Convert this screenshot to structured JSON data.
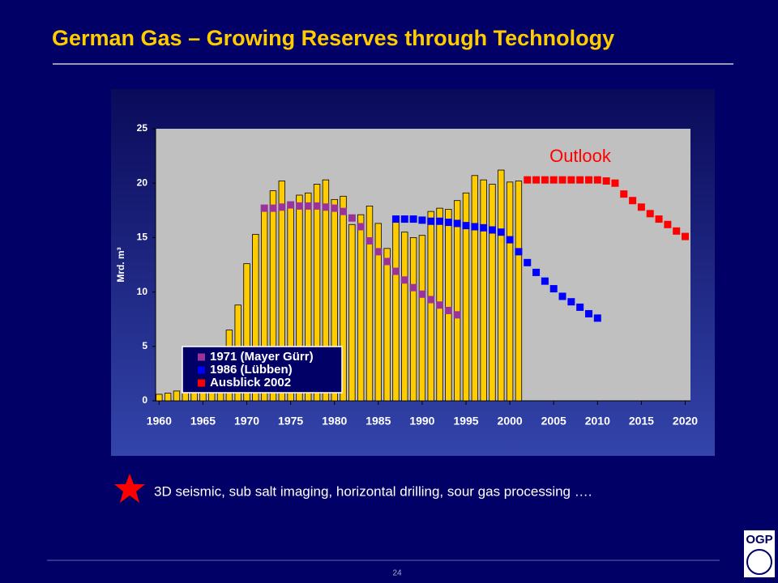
{
  "title": "German Gas – Growing Reserves through Technology",
  "chart_data": {
    "type": "bar",
    "ylabel": "Mrd. m³",
    "annotation": "Outlook",
    "xlim": [
      1959.6,
      2020.6
    ],
    "ylim": [
      0,
      25
    ],
    "xticks": [
      1960,
      1965,
      1970,
      1975,
      1980,
      1985,
      1990,
      1995,
      2000,
      2005,
      2010,
      2015,
      2020
    ],
    "yticks": [
      0,
      5,
      10,
      15,
      20,
      25
    ],
    "bars": {
      "color": "#ffcc00",
      "x": [
        1960,
        1961,
        1962,
        1963,
        1964,
        1965,
        1966,
        1967,
        1968,
        1969,
        1970,
        1971,
        1972,
        1973,
        1974,
        1975,
        1976,
        1977,
        1978,
        1979,
        1980,
        1981,
        1982,
        1983,
        1984,
        1985,
        1986,
        1987,
        1988,
        1989,
        1990,
        1991,
        1992,
        1993,
        1994,
        1995,
        1996,
        1997,
        1998,
        1999,
        2000,
        2001
      ],
      "values": [
        0.6,
        0.7,
        0.9,
        1.0,
        1.3,
        1.7,
        2.3,
        3.5,
        6.5,
        8.8,
        12.6,
        15.3,
        17.6,
        19.3,
        20.2,
        18.0,
        18.9,
        19.1,
        19.9,
        20.3,
        18.5,
        18.8,
        16.2,
        17.1,
        17.9,
        16.3,
        14.0,
        16.5,
        15.5,
        15.0,
        15.2,
        17.4,
        17.7,
        17.6,
        18.4,
        19.1,
        20.7,
        20.3,
        19.9,
        21.2,
        20.1,
        20.2
      ]
    },
    "series": [
      {
        "name": "1971 (Mayer Gürr)",
        "color": "#993399",
        "x": [
          1972,
          1973,
          1974,
          1975,
          1976,
          1977,
          1978,
          1979,
          1980,
          1981,
          1982,
          1983,
          1984,
          1985,
          1986,
          1987,
          1988,
          1989,
          1990,
          1991,
          1992,
          1993,
          1994
        ],
        "values": [
          17.7,
          17.7,
          17.8,
          18.0,
          17.9,
          17.9,
          17.9,
          17.8,
          17.7,
          17.4,
          16.8,
          16.0,
          14.7,
          13.7,
          12.8,
          11.9,
          11.1,
          10.4,
          9.8,
          9.3,
          8.8,
          8.3,
          7.9
        ]
      },
      {
        "name": "1986 (Lübben)",
        "color": "#0000ff",
        "x": [
          1987,
          1988,
          1989,
          1990,
          1991,
          1992,
          1993,
          1994,
          1995,
          1996,
          1997,
          1998,
          1999,
          2000,
          2001,
          2002,
          2003,
          2004,
          2005,
          2006,
          2007,
          2008,
          2009,
          2010
        ],
        "values": [
          16.7,
          16.7,
          16.7,
          16.6,
          16.5,
          16.5,
          16.4,
          16.3,
          16.1,
          16.0,
          15.9,
          15.7,
          15.5,
          14.8,
          13.7,
          12.7,
          11.8,
          11.0,
          10.3,
          9.6,
          9.1,
          8.6,
          8.0,
          7.6
        ]
      },
      {
        "name": "Ausblick 2002",
        "color": "#ff0000",
        "x": [
          2002,
          2003,
          2004,
          2005,
          2006,
          2007,
          2008,
          2009,
          2010,
          2011,
          2012,
          2013,
          2014,
          2015,
          2016,
          2017,
          2018,
          2019,
          2020
        ],
        "values": [
          20.3,
          20.3,
          20.3,
          20.3,
          20.3,
          20.3,
          20.3,
          20.3,
          20.3,
          20.2,
          20.0,
          19.0,
          18.4,
          17.8,
          17.2,
          16.7,
          16.2,
          15.6,
          15.1
        ]
      }
    ]
  },
  "footnote": "3D seismic, sub salt imaging, horizontal drilling, sour gas processing ….",
  "page_number": "24",
  "logo": "OGP"
}
